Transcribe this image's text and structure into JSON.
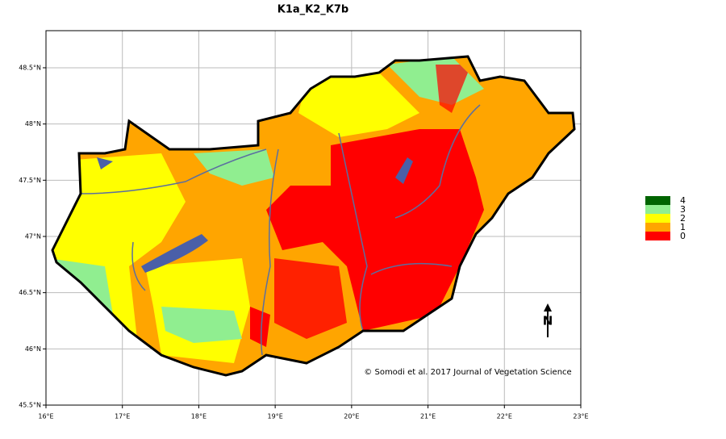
{
  "title": "K1a_K2_K7b",
  "x_axis": {
    "lim": [
      16,
      23
    ],
    "ticks": [
      {
        "value": 16,
        "label": "16°E"
      },
      {
        "value": 17,
        "label": "17°E"
      },
      {
        "value": 18,
        "label": "18°E"
      },
      {
        "value": 19,
        "label": "19°E"
      },
      {
        "value": 20,
        "label": "20°E"
      },
      {
        "value": 21,
        "label": "21°E"
      },
      {
        "value": 22,
        "label": "22°E"
      },
      {
        "value": 23,
        "label": "23°E"
      }
    ]
  },
  "y_axis": {
    "lim": [
      45.5,
      48.83
    ],
    "ticks": [
      {
        "value": 45.5,
        "label": "45.5°N"
      },
      {
        "value": 46,
        "label": "46°N"
      },
      {
        "value": 46.5,
        "label": "46.5°N"
      },
      {
        "value": 47,
        "label": "47°N"
      },
      {
        "value": 47.5,
        "label": "47.5°N"
      },
      {
        "value": 48,
        "label": "48°N"
      },
      {
        "value": 48.5,
        "label": "48.5°N"
      }
    ]
  },
  "legend": [
    {
      "label": "4",
      "color": "#006400"
    },
    {
      "label": "3",
      "color": "#90ee90"
    },
    {
      "label": "2",
      "color": "#ffff00"
    },
    {
      "label": "1",
      "color": "#ffa500"
    },
    {
      "label": "0",
      "color": "#ff0000"
    }
  ],
  "credit": "© Somodi et al. 2017 Journal of Vegetation Science",
  "north_label": "N"
}
